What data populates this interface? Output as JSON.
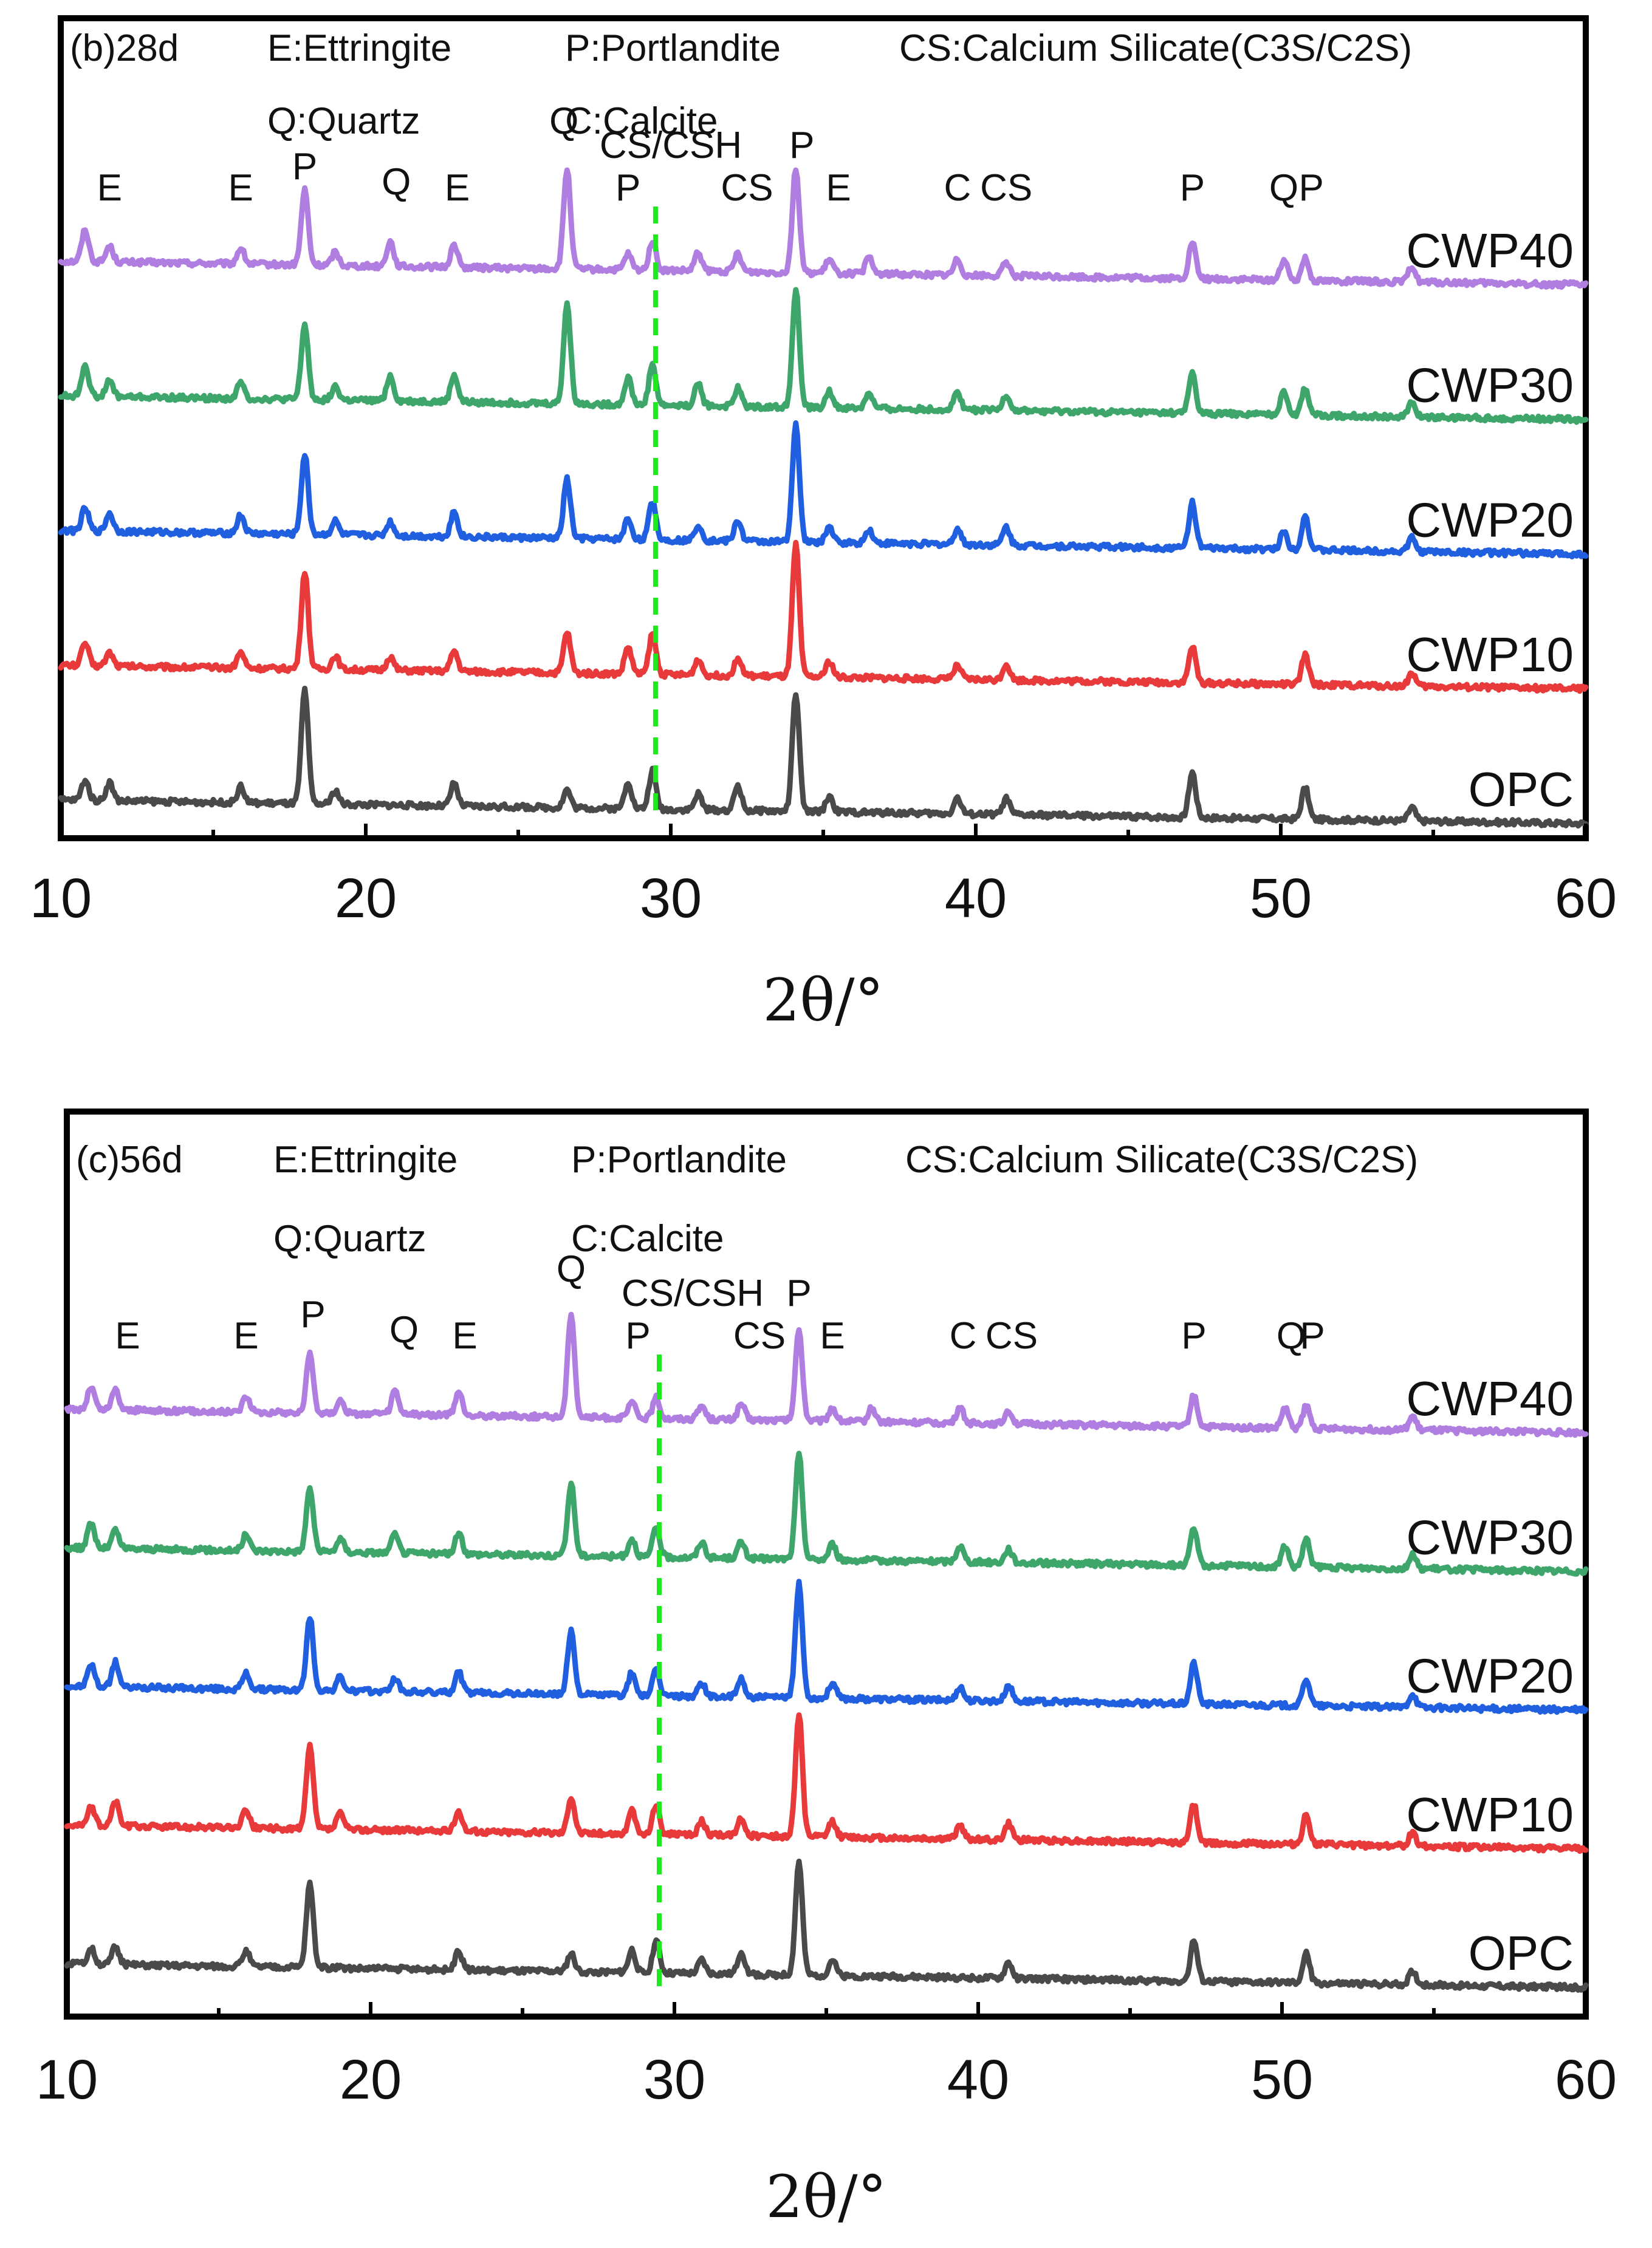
{
  "chart_data": [
    {
      "type": "line",
      "panel_label": "(b)28d",
      "legend_line_1": [
        "E:Ettringite",
        "P:Portlandite",
        "CS:Calcium Silicate(C3S/C2S)"
      ],
      "legend_line_2": [
        "Q:Quartz",
        "C:Calcite"
      ],
      "xlabel": "2θ/°",
      "xlim": [
        10,
        60
      ],
      "xticks": [
        "10",
        "20",
        "30",
        "40",
        "50",
        "60"
      ],
      "reference_line_x": 29.5,
      "series": [
        {
          "name": "CWP40",
          "color": "#b07ee0",
          "baseline": 0.82,
          "scale": 1.0,
          "peaks": [
            [
              10.8,
              0.7
            ],
            [
              11.6,
              0.35
            ],
            [
              15.9,
              0.35
            ],
            [
              18.0,
              1.65
            ],
            [
              19.0,
              0.3
            ],
            [
              20.8,
              0.55
            ],
            [
              22.9,
              0.5
            ],
            [
              26.6,
              2.2
            ],
            [
              28.6,
              0.35
            ],
            [
              29.4,
              0.65
            ],
            [
              30.9,
              0.4
            ],
            [
              32.2,
              0.4
            ],
            [
              34.1,
              2.3
            ],
            [
              35.2,
              0.3
            ],
            [
              36.5,
              0.35
            ],
            [
              39.4,
              0.35
            ],
            [
              41.0,
              0.3
            ],
            [
              47.1,
              0.8
            ],
            [
              50.1,
              0.45
            ],
            [
              50.8,
              0.5
            ],
            [
              54.3,
              0.35
            ]
          ]
        },
        {
          "name": "CWP30",
          "color": "#3fa66b",
          "baseline": 0.6,
          "scale": 1.0,
          "peaks": [
            [
              10.8,
              0.7
            ],
            [
              11.6,
              0.35
            ],
            [
              15.9,
              0.35
            ],
            [
              18.0,
              1.65
            ],
            [
              19.0,
              0.3
            ],
            [
              20.8,
              0.55
            ],
            [
              22.9,
              0.6
            ],
            [
              26.6,
              2.2
            ],
            [
              28.6,
              0.6
            ],
            [
              29.4,
              0.9
            ],
            [
              30.9,
              0.5
            ],
            [
              32.2,
              0.4
            ],
            [
              34.1,
              2.6
            ],
            [
              35.2,
              0.35
            ],
            [
              36.5,
              0.35
            ],
            [
              39.4,
              0.4
            ],
            [
              41.0,
              0.35
            ],
            [
              47.1,
              0.9
            ],
            [
              50.1,
              0.55
            ],
            [
              50.8,
              0.6
            ],
            [
              54.3,
              0.3
            ]
          ]
        },
        {
          "name": "CWP20",
          "color": "#1f5fe0",
          "baseline": 0.38,
          "scale": 1.0,
          "peaks": [
            [
              10.8,
              0.5
            ],
            [
              11.6,
              0.4
            ],
            [
              15.9,
              0.4
            ],
            [
              18.0,
              1.75
            ],
            [
              19.0,
              0.3
            ],
            [
              20.8,
              0.3
            ],
            [
              22.9,
              0.55
            ],
            [
              26.6,
              1.3
            ],
            [
              28.6,
              0.45
            ],
            [
              29.4,
              0.85
            ],
            [
              30.9,
              0.35
            ],
            [
              32.2,
              0.45
            ],
            [
              34.1,
              2.6
            ],
            [
              35.2,
              0.35
            ],
            [
              36.5,
              0.3
            ],
            [
              39.4,
              0.35
            ],
            [
              41.0,
              0.4
            ],
            [
              47.1,
              1.0
            ],
            [
              50.1,
              0.4
            ],
            [
              50.8,
              0.75
            ],
            [
              54.3,
              0.3
            ]
          ]
        },
        {
          "name": "CWP10",
          "color": "#e83a3a",
          "baseline": 0.17,
          "scale": 1.0,
          "peaks": [
            [
              10.8,
              0.5
            ],
            [
              11.6,
              0.3
            ],
            [
              15.9,
              0.35
            ],
            [
              18.0,
              2.15
            ],
            [
              19.0,
              0.3
            ],
            [
              20.8,
              0.3
            ],
            [
              22.9,
              0.45
            ],
            [
              26.6,
              0.9
            ],
            [
              28.6,
              0.6
            ],
            [
              29.4,
              0.9
            ],
            [
              30.9,
              0.35
            ],
            [
              32.2,
              0.4
            ],
            [
              34.1,
              2.9
            ],
            [
              35.2,
              0.35
            ],
            [
              39.4,
              0.3
            ],
            [
              41.0,
              0.35
            ],
            [
              47.1,
              0.8
            ],
            [
              50.8,
              0.65
            ],
            [
              54.3,
              0.3
            ]
          ]
        },
        {
          "name": "OPC",
          "color": "#4a4a4a",
          "baseline": -0.05,
          "scale": 1.0,
          "peaks": [
            [
              10.8,
              0.45
            ],
            [
              11.6,
              0.4
            ],
            [
              15.9,
              0.35
            ],
            [
              18.0,
              2.5
            ],
            [
              19.0,
              0.3
            ],
            [
              22.9,
              0.5
            ],
            [
              26.6,
              0.4
            ],
            [
              28.6,
              0.6
            ],
            [
              29.4,
              0.85
            ],
            [
              30.9,
              0.35
            ],
            [
              32.2,
              0.55
            ],
            [
              34.1,
              2.6
            ],
            [
              35.2,
              0.35
            ],
            [
              39.4,
              0.35
            ],
            [
              41.0,
              0.35
            ],
            [
              47.1,
              1.0
            ],
            [
              50.8,
              0.7
            ],
            [
              54.3,
              0.3
            ]
          ]
        }
      ],
      "annotations": [
        {
          "text": "E",
          "x": 11.6
        },
        {
          "text": "E",
          "x": 15.9
        },
        {
          "text": "P",
          "x": 18.0
        },
        {
          "text": "Q",
          "x": 21.0
        },
        {
          "text": "E",
          "x": 23.0
        },
        {
          "text": "Q",
          "x": 26.5
        },
        {
          "text": "CS/CSH",
          "x": 30.0
        },
        {
          "text": "P",
          "x": 28.6
        },
        {
          "text": "CS",
          "x": 32.5
        },
        {
          "text": "P",
          "x": 34.3
        },
        {
          "text": "E",
          "x": 35.5
        },
        {
          "text": "C",
          "x": 39.4
        },
        {
          "text": "CS",
          "x": 41.0
        },
        {
          "text": "P",
          "x": 47.1
        },
        {
          "text": "Q",
          "x": 50.1
        },
        {
          "text": "P",
          "x": 51.0
        }
      ]
    },
    {
      "type": "line",
      "panel_label": "(c)56d",
      "legend_line_1": [
        "E:Ettringite",
        "P:Portlandite",
        "CS:Calcium Silicate(C3S/C2S)"
      ],
      "legend_line_2": [
        "Q:Quartz",
        "C:Calcite"
      ],
      "xlabel": "2θ/°",
      "xlim": [
        10,
        60
      ],
      "xticks": [
        "10",
        "20",
        "30",
        "40",
        "50",
        "60"
      ],
      "reference_line_x": 29.5,
      "series": [
        {
          "name": "CWP40",
          "color": "#b07ee0",
          "baseline": 0.82,
          "scale": 1.0,
          "peaks": [
            [
              10.8,
              0.5
            ],
            [
              11.6,
              0.45
            ],
            [
              15.9,
              0.35
            ],
            [
              18.0,
              1.3
            ],
            [
              19.0,
              0.3
            ],
            [
              20.8,
              0.5
            ],
            [
              22.9,
              0.5
            ],
            [
              26.6,
              2.3
            ],
            [
              28.6,
              0.35
            ],
            [
              29.4,
              0.45
            ],
            [
              30.9,
              0.3
            ],
            [
              32.2,
              0.35
            ],
            [
              34.1,
              2.0
            ],
            [
              35.2,
              0.3
            ],
            [
              36.5,
              0.3
            ],
            [
              39.4,
              0.35
            ],
            [
              41.0,
              0.3
            ],
            [
              47.1,
              0.7
            ],
            [
              50.1,
              0.45
            ],
            [
              50.8,
              0.5
            ],
            [
              54.3,
              0.3
            ]
          ]
        },
        {
          "name": "CWP30",
          "color": "#3fa66b",
          "baseline": 0.6,
          "scale": 1.0,
          "peaks": [
            [
              10.8,
              0.55
            ],
            [
              11.6,
              0.4
            ],
            [
              15.9,
              0.35
            ],
            [
              18.0,
              1.4
            ],
            [
              19.0,
              0.3
            ],
            [
              20.8,
              0.4
            ],
            [
              22.9,
              0.45
            ],
            [
              26.6,
              1.6
            ],
            [
              28.6,
              0.4
            ],
            [
              29.4,
              0.65
            ],
            [
              30.9,
              0.35
            ],
            [
              32.2,
              0.35
            ],
            [
              34.1,
              2.3
            ],
            [
              35.2,
              0.35
            ],
            [
              39.4,
              0.35
            ],
            [
              41.0,
              0.3
            ],
            [
              47.1,
              0.8
            ],
            [
              50.1,
              0.45
            ],
            [
              50.8,
              0.6
            ],
            [
              54.3,
              0.3
            ]
          ]
        },
        {
          "name": "CWP20",
          "color": "#1f5fe0",
          "baseline": 0.38,
          "scale": 1.0,
          "peaks": [
            [
              10.8,
              0.5
            ],
            [
              11.6,
              0.55
            ],
            [
              15.9,
              0.35
            ],
            [
              18.0,
              1.6
            ],
            [
              19.0,
              0.3
            ],
            [
              20.8,
              0.3
            ],
            [
              22.9,
              0.45
            ],
            [
              26.6,
              1.4
            ],
            [
              28.6,
              0.5
            ],
            [
              29.4,
              0.55
            ],
            [
              30.9,
              0.3
            ],
            [
              32.2,
              0.4
            ],
            [
              34.1,
              2.5
            ],
            [
              35.2,
              0.35
            ],
            [
              39.4,
              0.3
            ],
            [
              41.0,
              0.35
            ],
            [
              47.1,
              0.9
            ],
            [
              50.8,
              0.6
            ],
            [
              54.3,
              0.3
            ]
          ]
        },
        {
          "name": "CWP10",
          "color": "#e83a3a",
          "baseline": 0.17,
          "scale": 1.0,
          "peaks": [
            [
              10.8,
              0.4
            ],
            [
              11.6,
              0.55
            ],
            [
              15.9,
              0.4
            ],
            [
              18.0,
              1.8
            ],
            [
              19.0,
              0.35
            ],
            [
              22.9,
              0.45
            ],
            [
              26.6,
              0.8
            ],
            [
              28.6,
              0.5
            ],
            [
              29.4,
              0.65
            ],
            [
              30.9,
              0.3
            ],
            [
              32.2,
              0.4
            ],
            [
              34.1,
              2.7
            ],
            [
              35.2,
              0.35
            ],
            [
              39.4,
              0.3
            ],
            [
              41.0,
              0.35
            ],
            [
              47.1,
              0.85
            ],
            [
              50.8,
              0.65
            ],
            [
              54.3,
              0.3
            ]
          ]
        },
        {
          "name": "OPC",
          "color": "#4a4a4a",
          "baseline": -0.05,
          "scale": 1.0,
          "peaks": [
            [
              10.8,
              0.35
            ],
            [
              11.6,
              0.4
            ],
            [
              15.9,
              0.35
            ],
            [
              18.0,
              1.85
            ],
            [
              22.9,
              0.4
            ],
            [
              26.6,
              0.4
            ],
            [
              28.6,
              0.5
            ],
            [
              29.4,
              0.7
            ],
            [
              30.9,
              0.3
            ],
            [
              32.2,
              0.5
            ],
            [
              34.1,
              2.5
            ],
            [
              35.2,
              0.35
            ],
            [
              41.0,
              0.35
            ],
            [
              47.1,
              0.9
            ],
            [
              50.8,
              0.65
            ],
            [
              54.3,
              0.3
            ]
          ]
        }
      ],
      "annotations": [
        {
          "text": "E",
          "x": 12.0
        },
        {
          "text": "E",
          "x": 15.9
        },
        {
          "text": "P",
          "x": 18.1
        },
        {
          "text": "Q",
          "x": 21.1
        },
        {
          "text": "E",
          "x": 23.1
        },
        {
          "text": "Q",
          "x": 26.6
        },
        {
          "text": "CS/CSH",
          "x": 30.6
        },
        {
          "text": "P",
          "x": 28.8
        },
        {
          "text": "CS",
          "x": 32.8
        },
        {
          "text": "P",
          "x": 34.1
        },
        {
          "text": "E",
          "x": 35.2
        },
        {
          "text": "C",
          "x": 39.5
        },
        {
          "text": "CS",
          "x": 41.1
        },
        {
          "text": "P",
          "x": 47.1
        },
        {
          "text": "Q",
          "x": 50.3
        },
        {
          "text": "P",
          "x": 51.0
        }
      ]
    }
  ]
}
